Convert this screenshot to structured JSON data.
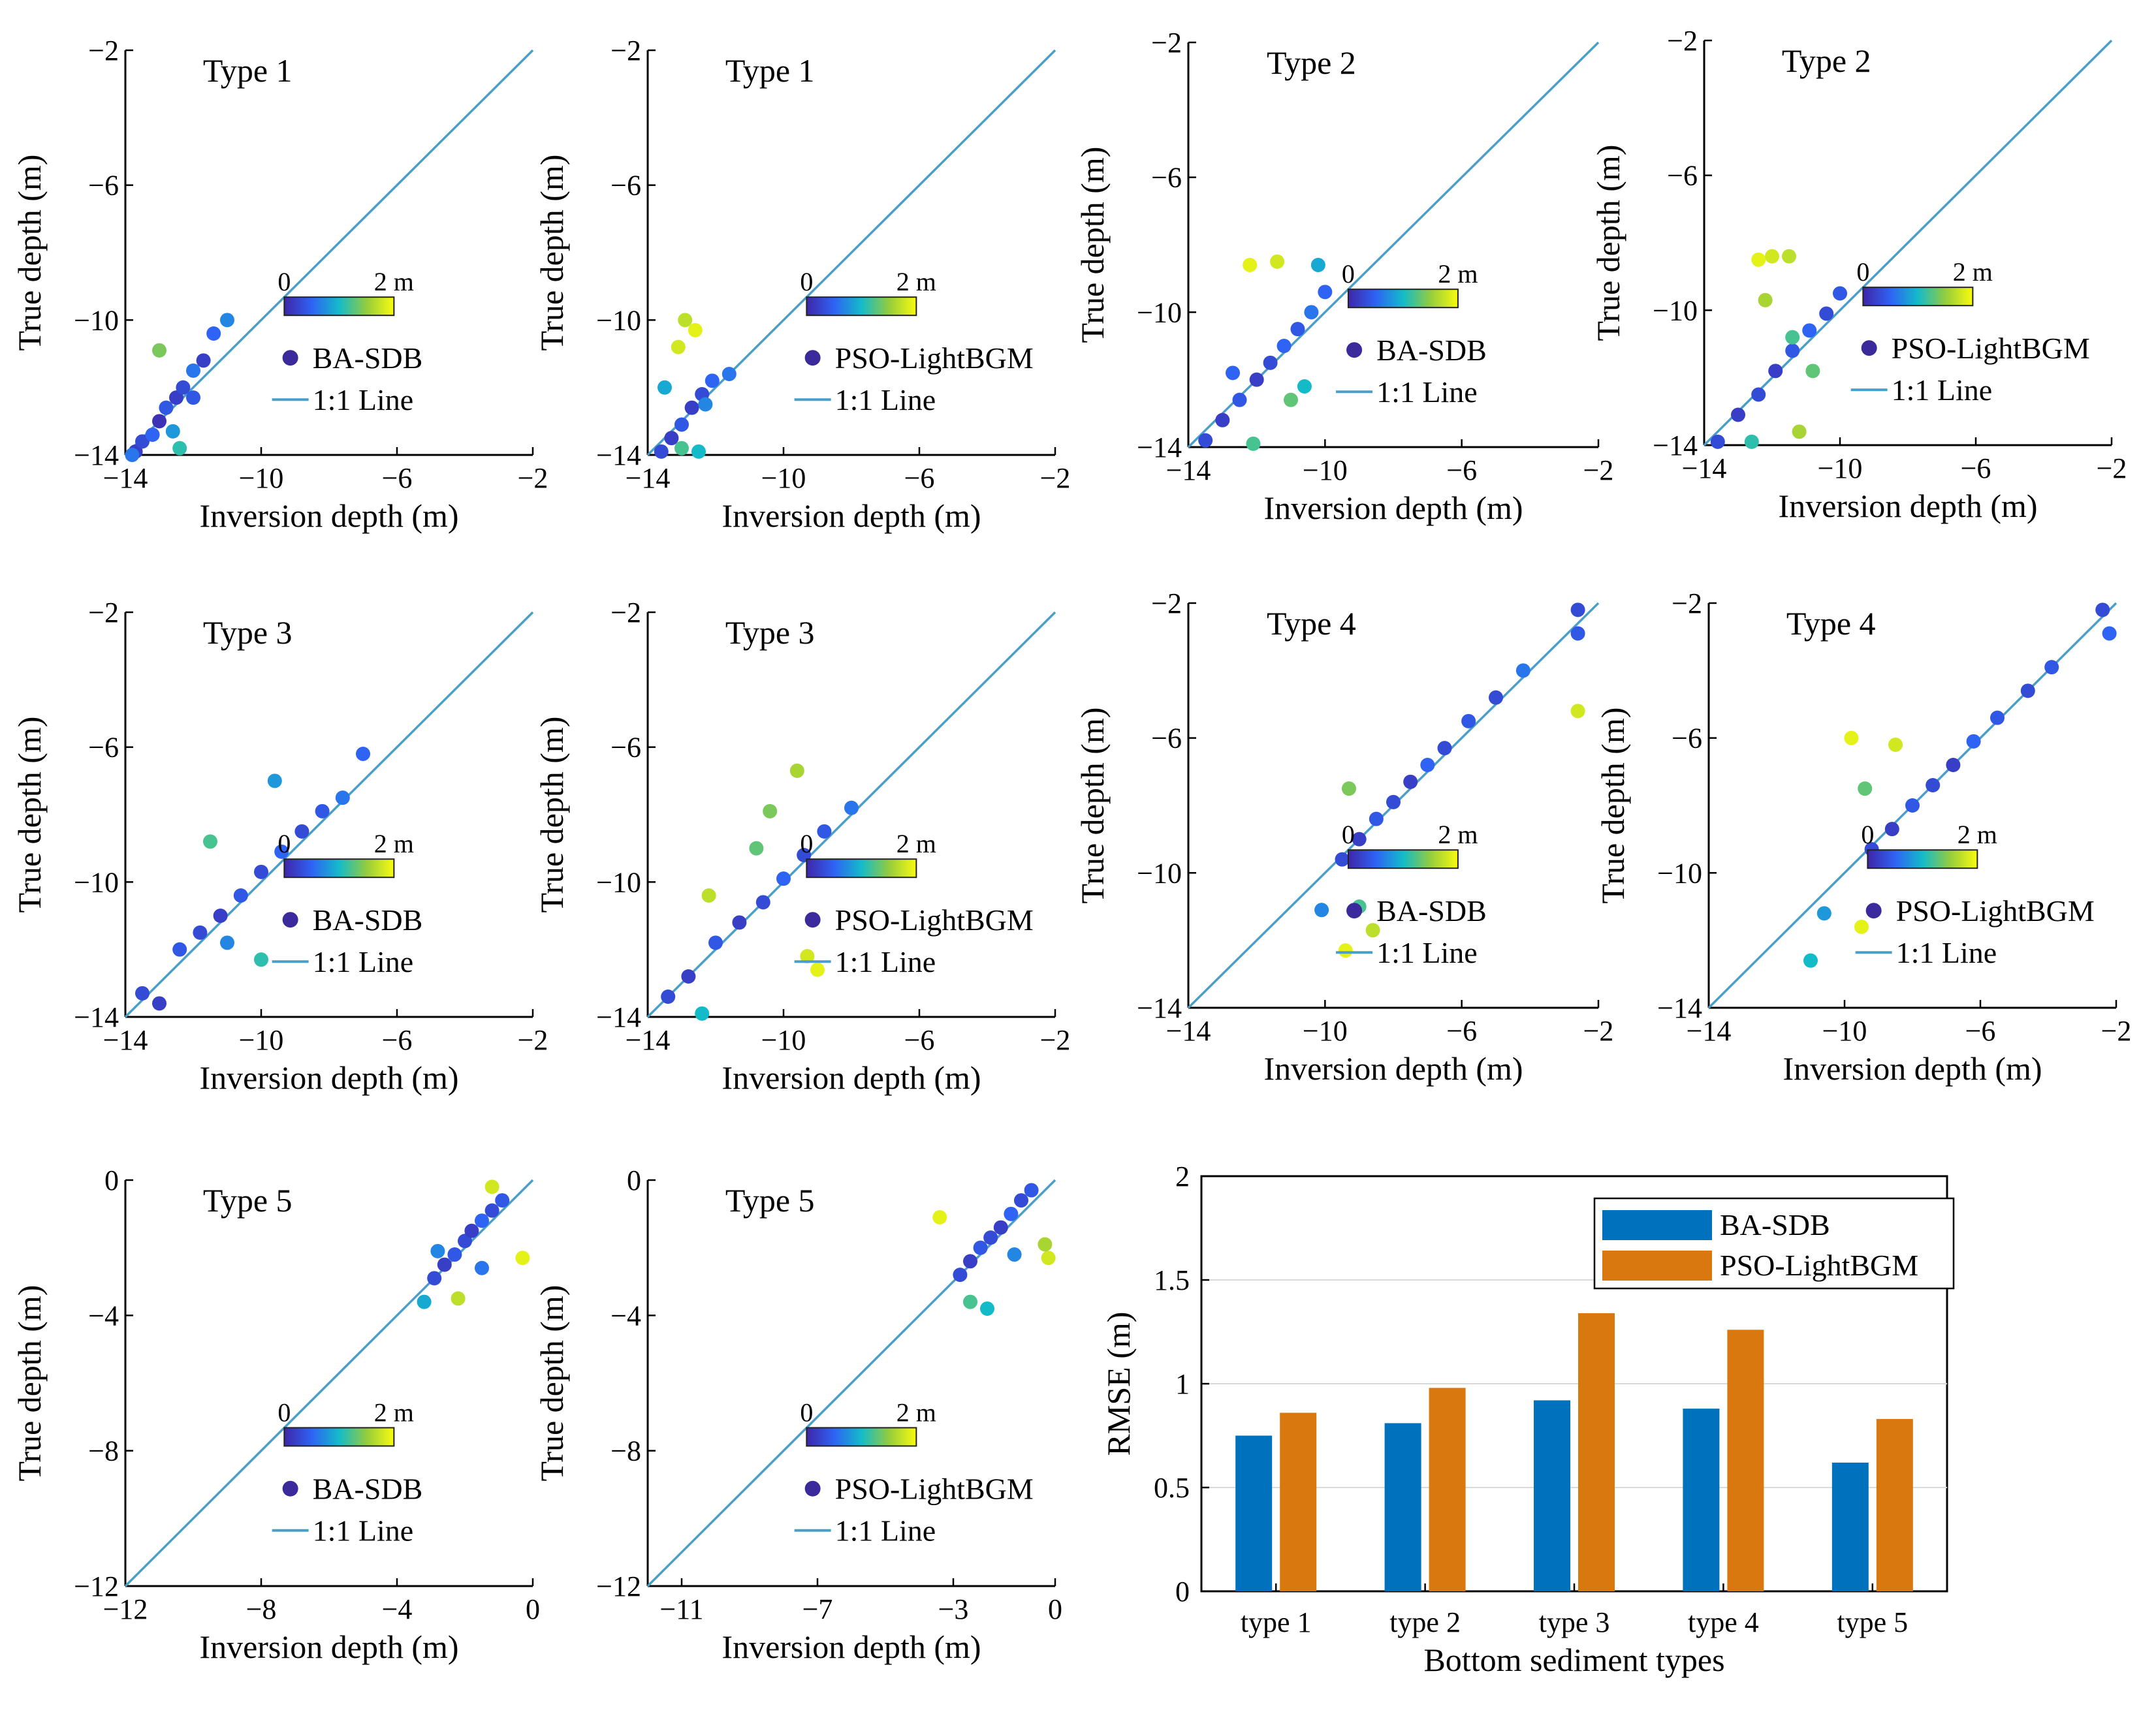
{
  "colors": {
    "ba_sdb": "#0072BD",
    "pso_lightbgm": "#D9780F",
    "one_to_one_line": "#4A9FC8",
    "marker": "#3B2A9C"
  },
  "colorbar": {
    "min_label": "0",
    "max_label": "2 m",
    "range": [
      0,
      2
    ]
  },
  "chart_data": [
    {
      "type": "scatter",
      "title": "Type 1",
      "series": "BA-SDB",
      "line": "1:1 Line",
      "xlabel": "Inversion depth (m)",
      "ylabel": "True depth (m)",
      "xlim": [
        -14,
        -2
      ],
      "ylim": [
        -14,
        -2
      ],
      "xticks": [
        "-14",
        "-10",
        "-6",
        "-2"
      ],
      "yticks": [
        "-14",
        "-10",
        "-6",
        "-2"
      ],
      "points": [
        {
          "x": -13.7,
          "y": -13.9,
          "e": 0.2
        },
        {
          "x": -13.5,
          "y": -13.6,
          "e": 0.3
        },
        {
          "x": -13.2,
          "y": -13.4,
          "e": 0.5
        },
        {
          "x": -13.0,
          "y": -13.0,
          "e": 0.1
        },
        {
          "x": -12.8,
          "y": -12.6,
          "e": 0.4
        },
        {
          "x": -12.5,
          "y": -12.3,
          "e": 0.2
        },
        {
          "x": -12.3,
          "y": -12.0,
          "e": 0.3
        },
        {
          "x": -12.0,
          "y": -11.5,
          "e": 0.6
        },
        {
          "x": -11.7,
          "y": -11.2,
          "e": 0.2
        },
        {
          "x": -11.4,
          "y": -10.4,
          "e": 0.5
        },
        {
          "x": -11.0,
          "y": -10.0,
          "e": 0.7
        },
        {
          "x": -13.0,
          "y": -10.9,
          "e": 1.4
        },
        {
          "x": -12.4,
          "y": -13.8,
          "e": 1.1
        },
        {
          "x": -13.8,
          "y": -14.0,
          "e": 0.6
        },
        {
          "x": -12.0,
          "y": -12.3,
          "e": 0.4
        },
        {
          "x": -12.6,
          "y": -13.3,
          "e": 0.8
        }
      ]
    },
    {
      "type": "scatter",
      "title": "Type 1",
      "series": "PSO-LightBGM",
      "line": "1:1 Line",
      "xlabel": "Inversion depth (m)",
      "ylabel": "True depth (m)",
      "xlim": [
        -14,
        -2
      ],
      "ylim": [
        -14,
        -2
      ],
      "xticks": [
        "-14",
        "-10",
        "-6",
        "-2"
      ],
      "yticks": [
        "-14",
        "-10",
        "-6",
        "-2"
      ],
      "points": [
        {
          "x": -13.6,
          "y": -13.9,
          "e": 0.3
        },
        {
          "x": -13.3,
          "y": -13.5,
          "e": 0.2
        },
        {
          "x": -13.0,
          "y": -13.1,
          "e": 0.4
        },
        {
          "x": -12.7,
          "y": -12.6,
          "e": 0.2
        },
        {
          "x": -12.4,
          "y": -12.2,
          "e": 0.3
        },
        {
          "x": -12.1,
          "y": -11.8,
          "e": 0.5
        },
        {
          "x": -11.6,
          "y": -11.6,
          "e": 0.6
        },
        {
          "x": -12.9,
          "y": -10.0,
          "e": 1.7
        },
        {
          "x": -12.6,
          "y": -10.3,
          "e": 1.9
        },
        {
          "x": -13.1,
          "y": -10.8,
          "e": 1.8
        },
        {
          "x": -13.5,
          "y": -12.0,
          "e": 0.9
        },
        {
          "x": -12.5,
          "y": -13.9,
          "e": 1.0
        },
        {
          "x": -13.0,
          "y": -13.8,
          "e": 1.2
        },
        {
          "x": -12.3,
          "y": -12.5,
          "e": 0.7
        }
      ]
    },
    {
      "type": "scatter",
      "title": "Type 2",
      "series": "BA-SDB",
      "line": "1:1 Line",
      "xlabel": "Inversion depth (m)",
      "ylabel": "True depth (m)",
      "xlim": [
        -14,
        -2
      ],
      "ylim": [
        -14,
        -2
      ],
      "xticks": [
        "-14",
        "-10",
        "-6",
        "-2"
      ],
      "yticks": [
        "-14",
        "-10",
        "-6",
        "-2"
      ],
      "points": [
        {
          "x": -13.5,
          "y": -13.8,
          "e": 0.3
        },
        {
          "x": -13.0,
          "y": -13.2,
          "e": 0.2
        },
        {
          "x": -12.5,
          "y": -12.6,
          "e": 0.4
        },
        {
          "x": -12.0,
          "y": -12.0,
          "e": 0.2
        },
        {
          "x": -11.6,
          "y": -11.5,
          "e": 0.3
        },
        {
          "x": -11.2,
          "y": -11.0,
          "e": 0.5
        },
        {
          "x": -10.8,
          "y": -10.5,
          "e": 0.4
        },
        {
          "x": -10.4,
          "y": -10.0,
          "e": 0.6
        },
        {
          "x": -10.0,
          "y": -9.4,
          "e": 0.5
        },
        {
          "x": -12.2,
          "y": -8.6,
          "e": 1.9
        },
        {
          "x": -11.4,
          "y": -8.5,
          "e": 1.8
        },
        {
          "x": -10.2,
          "y": -8.6,
          "e": 0.9
        },
        {
          "x": -10.6,
          "y": -12.2,
          "e": 1.0
        },
        {
          "x": -12.1,
          "y": -13.9,
          "e": 1.2
        },
        {
          "x": -11.0,
          "y": -12.6,
          "e": 1.3
        },
        {
          "x": -12.7,
          "y": -11.8,
          "e": 0.5
        }
      ]
    },
    {
      "type": "scatter",
      "title": "Type 2",
      "series": "PSO-LightBGM",
      "line": "1:1 Line",
      "xlabel": "Inversion depth (m)",
      "ylabel": "True depth (m)",
      "xlim": [
        -14,
        -2
      ],
      "ylim": [
        -14,
        -2
      ],
      "xticks": [
        "-14",
        "-10",
        "-6",
        "-2"
      ],
      "yticks": [
        "-14",
        "-10",
        "-6",
        "-2"
      ],
      "points": [
        {
          "x": -13.6,
          "y": -13.9,
          "e": 0.3
        },
        {
          "x": -13.0,
          "y": -13.1,
          "e": 0.2
        },
        {
          "x": -12.4,
          "y": -12.5,
          "e": 0.3
        },
        {
          "x": -11.9,
          "y": -11.8,
          "e": 0.2
        },
        {
          "x": -11.4,
          "y": -11.2,
          "e": 0.4
        },
        {
          "x": -10.9,
          "y": -10.6,
          "e": 0.5
        },
        {
          "x": -10.4,
          "y": -10.1,
          "e": 0.3
        },
        {
          "x": -10.0,
          "y": -9.5,
          "e": 0.4
        },
        {
          "x": -12.4,
          "y": -8.5,
          "e": 1.9
        },
        {
          "x": -12.0,
          "y": -8.4,
          "e": 1.8
        },
        {
          "x": -11.5,
          "y": -8.4,
          "e": 1.7
        },
        {
          "x": -12.2,
          "y": -9.7,
          "e": 1.6
        },
        {
          "x": -11.4,
          "y": -10.8,
          "e": 1.2
        },
        {
          "x": -10.8,
          "y": -11.8,
          "e": 1.3
        },
        {
          "x": -12.6,
          "y": -13.9,
          "e": 1.1
        },
        {
          "x": -11.2,
          "y": -13.6,
          "e": 1.6
        }
      ]
    },
    {
      "type": "scatter",
      "title": "Type 3",
      "series": "BA-SDB",
      "line": "1:1 Line",
      "xlabel": "Inversion depth (m)",
      "ylabel": "True depth (m)",
      "xlim": [
        -14,
        -2
      ],
      "ylim": [
        -14,
        -2
      ],
      "xticks": [
        "-14",
        "-10",
        "-6",
        "-2"
      ],
      "yticks": [
        "-14",
        "-10",
        "-6",
        "-2"
      ],
      "points": [
        {
          "x": -13.5,
          "y": -13.3,
          "e": 0.3
        },
        {
          "x": -13.0,
          "y": -13.6,
          "e": 0.2
        },
        {
          "x": -12.4,
          "y": -12.0,
          "e": 0.4
        },
        {
          "x": -11.8,
          "y": -11.5,
          "e": 0.3
        },
        {
          "x": -11.2,
          "y": -11.0,
          "e": 0.2
        },
        {
          "x": -10.6,
          "y": -10.4,
          "e": 0.4
        },
        {
          "x": -10.0,
          "y": -9.7,
          "e": 0.3
        },
        {
          "x": -9.4,
          "y": -9.1,
          "e": 0.5
        },
        {
          "x": -8.8,
          "y": -8.5,
          "e": 0.3
        },
        {
          "x": -8.2,
          "y": -7.9,
          "e": 0.4
        },
        {
          "x": -7.6,
          "y": -7.5,
          "e": 0.6
        },
        {
          "x": -7.0,
          "y": -6.2,
          "e": 0.5
        },
        {
          "x": -11.5,
          "y": -8.8,
          "e": 1.2
        },
        {
          "x": -9.6,
          "y": -7.0,
          "e": 0.8
        },
        {
          "x": -10.0,
          "y": -12.3,
          "e": 1.1
        },
        {
          "x": -11.0,
          "y": -11.8,
          "e": 0.7
        }
      ]
    },
    {
      "type": "scatter",
      "title": "Type 3",
      "series": "PSO-LightBGM",
      "line": "1:1 Line",
      "xlabel": "Inversion depth (m)",
      "ylabel": "True depth (m)",
      "xlim": [
        -14,
        -2
      ],
      "ylim": [
        -14,
        -2
      ],
      "xticks": [
        "-14",
        "-10",
        "-6",
        "-2"
      ],
      "yticks": [
        "-14",
        "-10",
        "-6",
        "-2"
      ],
      "points": [
        {
          "x": -13.4,
          "y": -13.4,
          "e": 0.3
        },
        {
          "x": -12.8,
          "y": -12.8,
          "e": 0.2
        },
        {
          "x": -12.0,
          "y": -11.8,
          "e": 0.4
        },
        {
          "x": -11.3,
          "y": -11.2,
          "e": 0.2
        },
        {
          "x": -10.6,
          "y": -10.6,
          "e": 0.3
        },
        {
          "x": -10.0,
          "y": -9.9,
          "e": 0.5
        },
        {
          "x": -9.4,
          "y": -9.2,
          "e": 0.3
        },
        {
          "x": -8.8,
          "y": -8.5,
          "e": 0.4
        },
        {
          "x": -8.0,
          "y": -7.8,
          "e": 0.6
        },
        {
          "x": -9.6,
          "y": -6.7,
          "e": 1.6
        },
        {
          "x": -10.4,
          "y": -7.9,
          "e": 1.4
        },
        {
          "x": -12.2,
          "y": -10.4,
          "e": 1.7
        },
        {
          "x": -10.8,
          "y": -9.0,
          "e": 1.3
        },
        {
          "x": -9.3,
          "y": -12.2,
          "e": 1.8
        },
        {
          "x": -9.0,
          "y": -12.6,
          "e": 1.9
        },
        {
          "x": -12.4,
          "y": -13.9,
          "e": 1.0
        }
      ]
    },
    {
      "type": "scatter",
      "title": "Type 4",
      "series": "BA-SDB",
      "line": "1:1 Line",
      "xlabel": "Inversion depth (m)",
      "ylabel": "True depth (m)",
      "xlim": [
        -14,
        -2
      ],
      "ylim": [
        -14,
        -2
      ],
      "xticks": [
        "-14",
        "-10",
        "-6",
        "-2"
      ],
      "yticks": [
        "-14",
        "-10",
        "-6",
        "-2"
      ],
      "points": [
        {
          "x": -9.5,
          "y": -9.6,
          "e": 0.3
        },
        {
          "x": -9.0,
          "y": -9.0,
          "e": 0.2
        },
        {
          "x": -8.5,
          "y": -8.4,
          "e": 0.4
        },
        {
          "x": -8.0,
          "y": -7.9,
          "e": 0.3
        },
        {
          "x": -7.5,
          "y": -7.3,
          "e": 0.2
        },
        {
          "x": -7.0,
          "y": -6.8,
          "e": 0.5
        },
        {
          "x": -6.5,
          "y": -6.3,
          "e": 0.3
        },
        {
          "x": -5.8,
          "y": -5.5,
          "e": 0.4
        },
        {
          "x": -5.0,
          "y": -4.8,
          "e": 0.3
        },
        {
          "x": -4.2,
          "y": -4.0,
          "e": 0.6
        },
        {
          "x": -2.6,
          "y": -2.2,
          "e": 0.3
        },
        {
          "x": -2.6,
          "y": -2.9,
          "e": 0.4
        },
        {
          "x": -2.6,
          "y": -5.2,
          "e": 1.8
        },
        {
          "x": -9.3,
          "y": -7.5,
          "e": 1.4
        },
        {
          "x": -9.4,
          "y": -12.3,
          "e": 1.9
        },
        {
          "x": -9.0,
          "y": -11.0,
          "e": 1.2
        },
        {
          "x": -8.6,
          "y": -11.7,
          "e": 1.7
        },
        {
          "x": -10.1,
          "y": -11.1,
          "e": 0.7
        }
      ]
    },
    {
      "type": "scatter",
      "title": "Type 4",
      "series": "PSO-LightBGM",
      "line": "1:1 Line",
      "xlabel": "Inversion depth (m)",
      "ylabel": "True depth (m)",
      "xlim": [
        -14,
        -2
      ],
      "ylim": [
        -14,
        -2
      ],
      "xticks": [
        "-14",
        "-10",
        "-6",
        "-2"
      ],
      "yticks": [
        "-14",
        "-10",
        "-6",
        "-2"
      ],
      "points": [
        {
          "x": -9.2,
          "y": -9.3,
          "e": 0.3
        },
        {
          "x": -8.6,
          "y": -8.7,
          "e": 0.2
        },
        {
          "x": -8.0,
          "y": -8.0,
          "e": 0.4
        },
        {
          "x": -7.4,
          "y": -7.4,
          "e": 0.3
        },
        {
          "x": -6.8,
          "y": -6.8,
          "e": 0.2
        },
        {
          "x": -6.2,
          "y": -6.1,
          "e": 0.5
        },
        {
          "x": -5.5,
          "y": -5.4,
          "e": 0.4
        },
        {
          "x": -4.6,
          "y": -4.6,
          "e": 0.3
        },
        {
          "x": -3.9,
          "y": -3.9,
          "e": 0.4
        },
        {
          "x": -2.4,
          "y": -2.2,
          "e": 0.3
        },
        {
          "x": -2.2,
          "y": -2.9,
          "e": 0.5
        },
        {
          "x": -9.8,
          "y": -6.0,
          "e": 1.9
        },
        {
          "x": -8.5,
          "y": -6.2,
          "e": 1.8
        },
        {
          "x": -9.4,
          "y": -7.5,
          "e": 1.3
        },
        {
          "x": -9.5,
          "y": -11.6,
          "e": 1.9
        },
        {
          "x": -10.6,
          "y": -11.2,
          "e": 0.8
        },
        {
          "x": -11.0,
          "y": -12.6,
          "e": 1.0
        }
      ]
    },
    {
      "type": "scatter",
      "title": "Type 5",
      "series": "BA-SDB",
      "line": "1:1 Line",
      "xlabel": "Inversion depth (m)",
      "ylabel": "True depth (m)",
      "xlim": [
        -12,
        0
      ],
      "ylim": [
        -12,
        0
      ],
      "xticks": [
        "-12",
        "-8",
        "-4",
        "0"
      ],
      "yticks": [
        "-12",
        "-8",
        "-4",
        "0"
      ],
      "points": [
        {
          "x": -2.9,
          "y": -2.9,
          "e": 0.3
        },
        {
          "x": -2.6,
          "y": -2.5,
          "e": 0.2
        },
        {
          "x": -2.3,
          "y": -2.2,
          "e": 0.4
        },
        {
          "x": -2.0,
          "y": -1.8,
          "e": 0.3
        },
        {
          "x": -1.8,
          "y": -1.5,
          "e": 0.2
        },
        {
          "x": -1.5,
          "y": -1.2,
          "e": 0.5
        },
        {
          "x": -1.2,
          "y": -0.9,
          "e": 0.3
        },
        {
          "x": -0.9,
          "y": -0.6,
          "e": 0.4
        },
        {
          "x": -1.2,
          "y": -0.2,
          "e": 1.8
        },
        {
          "x": -0.3,
          "y": -2.3,
          "e": 1.9
        },
        {
          "x": -2.2,
          "y": -3.5,
          "e": 1.7
        },
        {
          "x": -3.2,
          "y": -3.6,
          "e": 0.9
        },
        {
          "x": -1.5,
          "y": -2.6,
          "e": 0.6
        },
        {
          "x": -2.8,
          "y": -2.1,
          "e": 0.7
        }
      ]
    },
    {
      "type": "scatter",
      "title": "Type 5",
      "series": "PSO-LightBGM",
      "line": "1:1 Line",
      "xlabel": "Inversion depth (m)",
      "ylabel": "True depth (m)",
      "xlim": [
        -12,
        0
      ],
      "ylim": [
        -12,
        0
      ],
      "xticks": [
        "-11",
        "-7",
        "-3",
        "0"
      ],
      "yticks": [
        "-12",
        "-8",
        "-4",
        "0"
      ],
      "xtick_values": [
        -11,
        -7,
        -3,
        0
      ],
      "points": [
        {
          "x": -2.8,
          "y": -2.8,
          "e": 0.3
        },
        {
          "x": -2.5,
          "y": -2.4,
          "e": 0.2
        },
        {
          "x": -2.2,
          "y": -2.0,
          "e": 0.4
        },
        {
          "x": -1.9,
          "y": -1.7,
          "e": 0.3
        },
        {
          "x": -1.6,
          "y": -1.4,
          "e": 0.2
        },
        {
          "x": -1.3,
          "y": -1.0,
          "e": 0.5
        },
        {
          "x": -1.0,
          "y": -0.6,
          "e": 0.3
        },
        {
          "x": -0.7,
          "y": -0.3,
          "e": 0.4
        },
        {
          "x": -3.4,
          "y": -1.1,
          "e": 1.9
        },
        {
          "x": -0.2,
          "y": -2.3,
          "e": 1.8
        },
        {
          "x": -0.3,
          "y": -1.9,
          "e": 1.6
        },
        {
          "x": -2.5,
          "y": -3.6,
          "e": 1.2
        },
        {
          "x": -2.0,
          "y": -3.8,
          "e": 1.0
        },
        {
          "x": -1.2,
          "y": -2.2,
          "e": 0.7
        }
      ]
    },
    {
      "type": "bar",
      "categories": [
        "type 1",
        "type 2",
        "type 3",
        "type 4",
        "type 5"
      ],
      "series": [
        {
          "name": "BA-SDB",
          "values": [
            0.75,
            0.81,
            0.92,
            0.88,
            0.62
          ]
        },
        {
          "name": "PSO-LightBGM",
          "values": [
            0.86,
            0.98,
            1.34,
            1.26,
            0.83
          ]
        }
      ],
      "xlabel": "Bottom sediment types",
      "ylabel": "RMSE (m)",
      "ylim": [
        0,
        2
      ],
      "yticks": [
        "0",
        "0.5",
        "1",
        "1.5",
        "2"
      ]
    }
  ]
}
